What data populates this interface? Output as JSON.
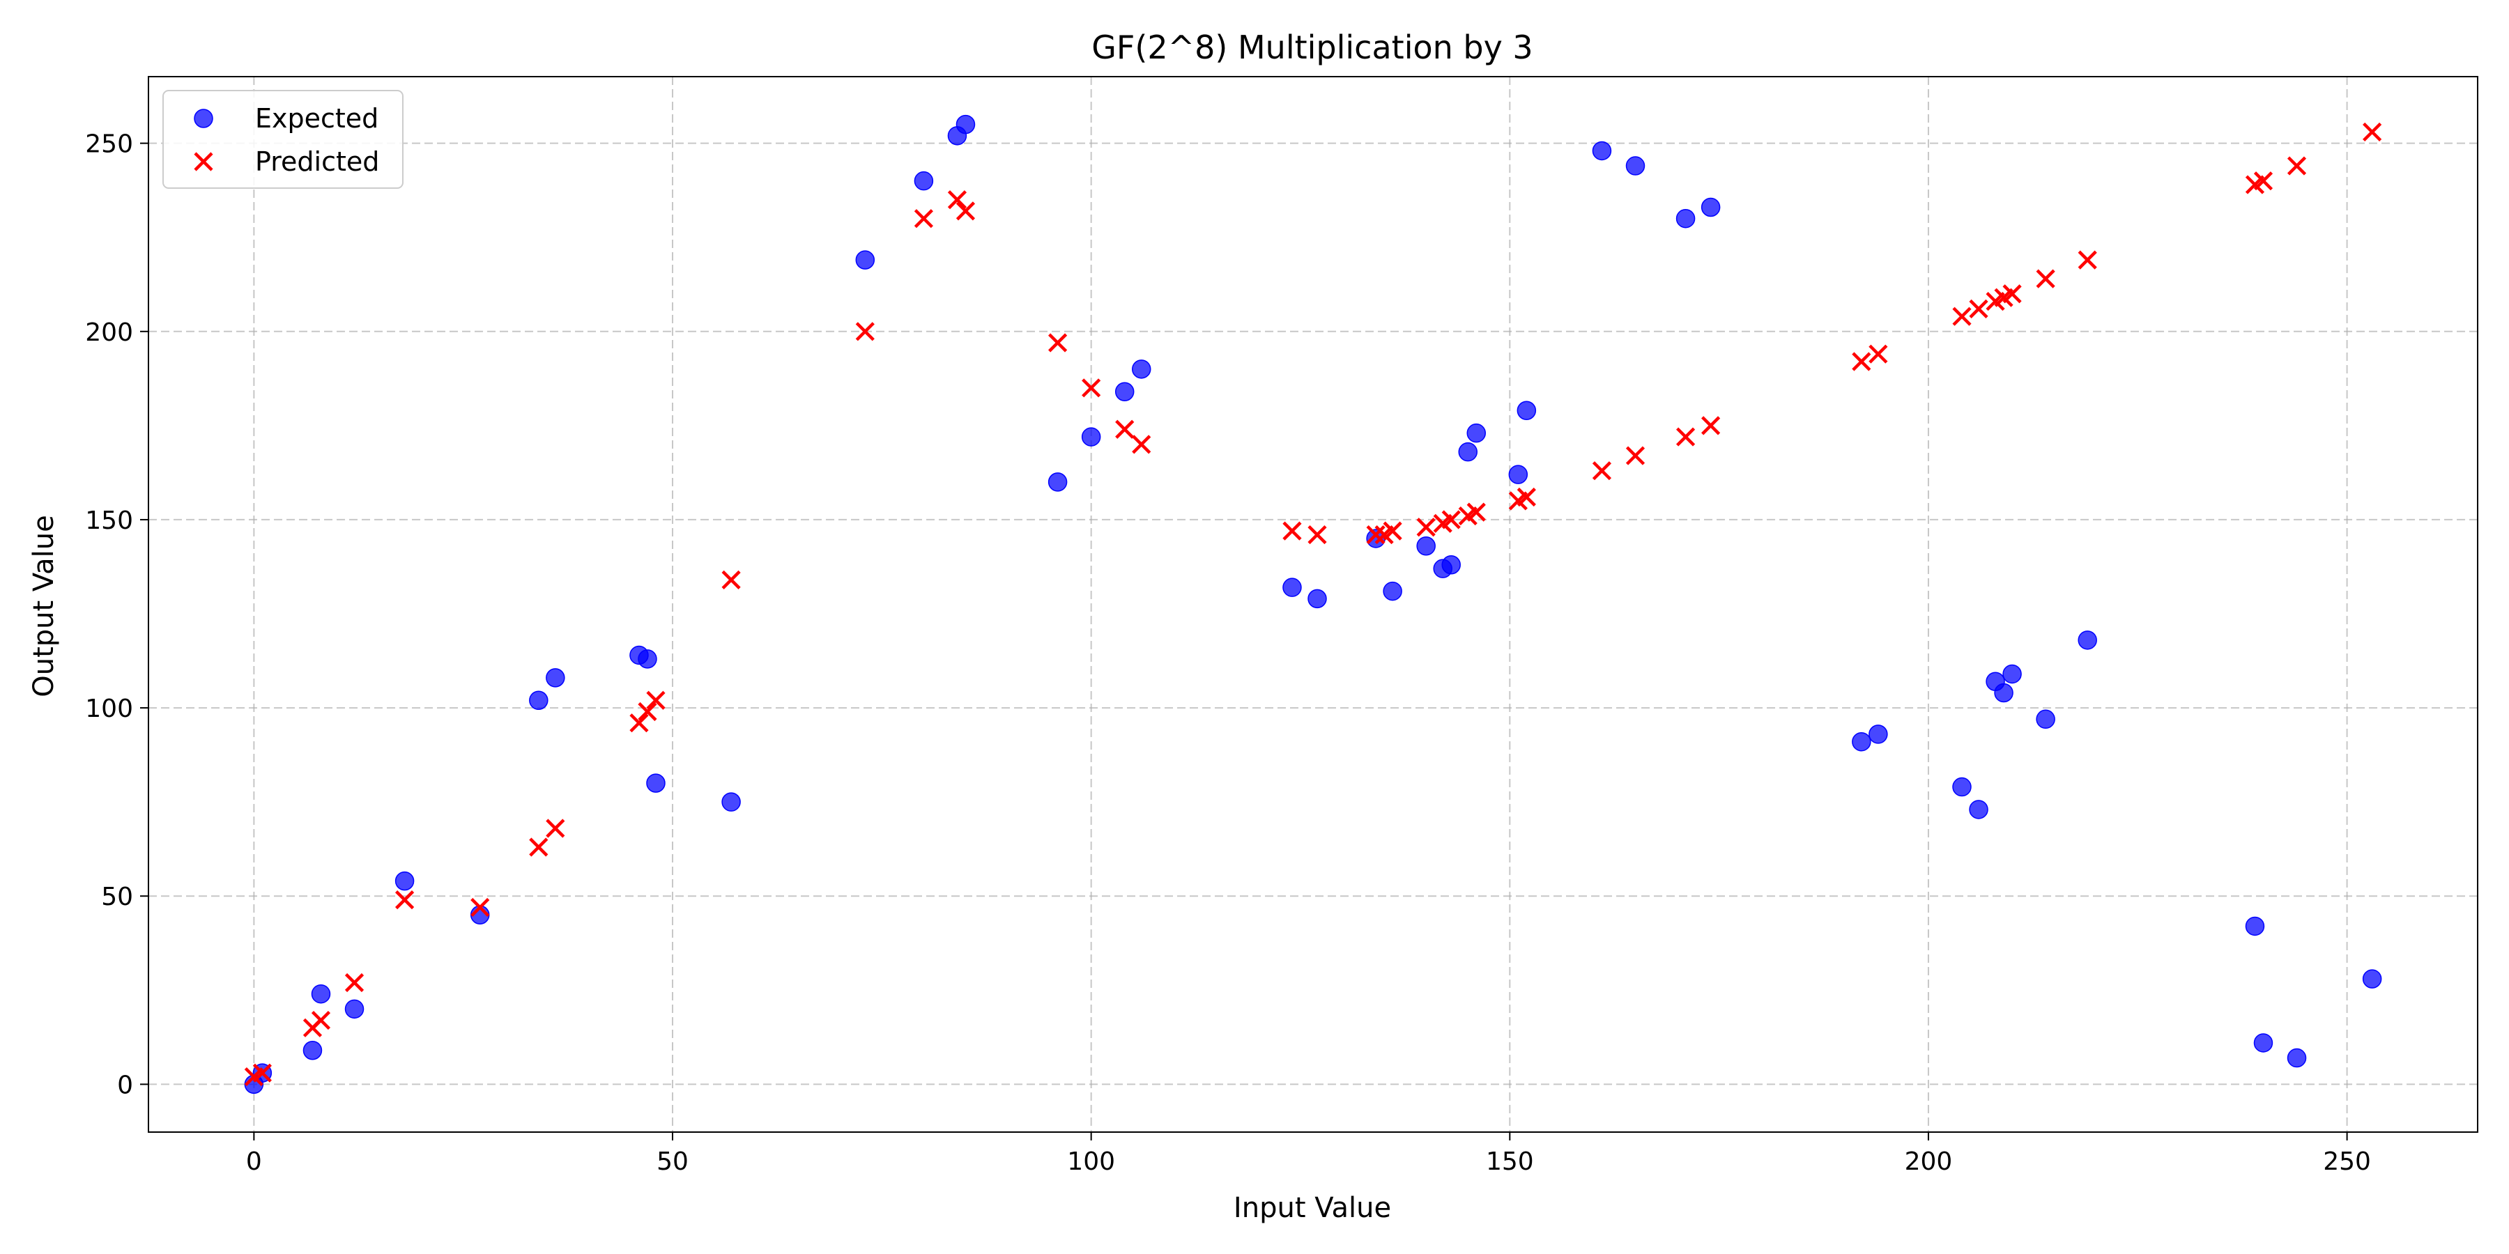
{
  "chart_data": {
    "type": "scatter",
    "title": "GF(2^8) Multiplication by 3",
    "xlabel": "Input Value",
    "ylabel": "Output Value",
    "xlim": [
      -12.6,
      265.6
    ],
    "ylim": [
      -12.7,
      267.7
    ],
    "xticks": [
      0,
      50,
      100,
      150,
      200,
      250
    ],
    "yticks": [
      0,
      50,
      100,
      150,
      200,
      250
    ],
    "grid": true,
    "legend_position": "top-left",
    "series": [
      {
        "name": "Expected",
        "marker": "circle",
        "color": "#0000ff",
        "points": [
          [
            0,
            0
          ],
          [
            1,
            3
          ],
          [
            7,
            9
          ],
          [
            8,
            24
          ],
          [
            12,
            20
          ],
          [
            18,
            54
          ],
          [
            27,
            45
          ],
          [
            34,
            102
          ],
          [
            36,
            108
          ],
          [
            46,
            114
          ],
          [
            47,
            113
          ],
          [
            48,
            80
          ],
          [
            57,
            75
          ],
          [
            73,
            219
          ],
          [
            80,
            240
          ],
          [
            84,
            252
          ],
          [
            85,
            255
          ],
          [
            96,
            160
          ],
          [
            100,
            172
          ],
          [
            104,
            184
          ],
          [
            106,
            190
          ],
          [
            124,
            132
          ],
          [
            127,
            129
          ],
          [
            134,
            145
          ],
          [
            136,
            131
          ],
          [
            140,
            143
          ],
          [
            142,
            137
          ],
          [
            143,
            138
          ],
          [
            145,
            168
          ],
          [
            146,
            173
          ],
          [
            151,
            162
          ],
          [
            152,
            179
          ],
          [
            161,
            248
          ],
          [
            165,
            244
          ],
          [
            171,
            230
          ],
          [
            174,
            233
          ],
          [
            192,
            91
          ],
          [
            194,
            93
          ],
          [
            204,
            79
          ],
          [
            206,
            73
          ],
          [
            208,
            107
          ],
          [
            209,
            104
          ],
          [
            210,
            109
          ],
          [
            214,
            97
          ],
          [
            219,
            118
          ],
          [
            239,
            42
          ],
          [
            240,
            11
          ],
          [
            244,
            7
          ],
          [
            253,
            28
          ]
        ]
      },
      {
        "name": "Predicted",
        "marker": "x",
        "color": "#ff0000",
        "points": [
          [
            0,
            2
          ],
          [
            1,
            3
          ],
          [
            7,
            15
          ],
          [
            8,
            17
          ],
          [
            12,
            27
          ],
          [
            18,
            49
          ],
          [
            27,
            47
          ],
          [
            34,
            63
          ],
          [
            36,
            68
          ],
          [
            46,
            96
          ],
          [
            47,
            99
          ],
          [
            48,
            102
          ],
          [
            57,
            134
          ],
          [
            73,
            200
          ],
          [
            80,
            230
          ],
          [
            84,
            235
          ],
          [
            85,
            232
          ],
          [
            96,
            197
          ],
          [
            100,
            185
          ],
          [
            104,
            174
          ],
          [
            106,
            170
          ],
          [
            124,
            147
          ],
          [
            127,
            146
          ],
          [
            134,
            146
          ],
          [
            135,
            146
          ],
          [
            136,
            147
          ],
          [
            140,
            148
          ],
          [
            142,
            149
          ],
          [
            143,
            150
          ],
          [
            145,
            151
          ],
          [
            146,
            152
          ],
          [
            151,
            155
          ],
          [
            152,
            156
          ],
          [
            161,
            163
          ],
          [
            165,
            167
          ],
          [
            171,
            172
          ],
          [
            174,
            175
          ],
          [
            192,
            192
          ],
          [
            194,
            194
          ],
          [
            204,
            204
          ],
          [
            206,
            206
          ],
          [
            208,
            208
          ],
          [
            209,
            209
          ],
          [
            210,
            210
          ],
          [
            214,
            214
          ],
          [
            219,
            219
          ],
          [
            239,
            239
          ],
          [
            240,
            240
          ],
          [
            244,
            244
          ],
          [
            253,
            253
          ]
        ]
      }
    ]
  }
}
